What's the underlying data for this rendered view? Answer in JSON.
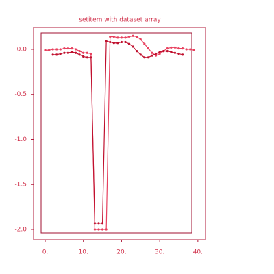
{
  "chart_data": {
    "type": "line",
    "title": "setitem with dataset array",
    "xlim": [
      -3.05,
      42
    ],
    "ylim": [
      -2.114,
      0.243
    ],
    "xticks": [
      {
        "value": 0,
        "label": "0."
      },
      {
        "value": 10,
        "label": "10."
      },
      {
        "value": 20,
        "label": "20."
      },
      {
        "value": 30,
        "label": "30."
      },
      {
        "value": 40,
        "label": "40."
      }
    ],
    "yticks": [
      {
        "value": 0,
        "label": "0.0"
      },
      -0.5,
      {
        "value": -1,
        "label": "-1.0"
      },
      -1.5,
      {
        "value": -2,
        "label": "-2.0"
      }
    ],
    "series": [
      {
        "color": "#e8405e",
        "x": [
          0,
          1,
          2,
          3,
          4,
          5,
          6,
          7,
          8,
          9,
          10,
          11,
          12,
          13,
          14,
          15,
          16,
          17,
          18,
          19,
          20,
          21,
          22,
          23,
          24,
          25,
          26,
          27,
          28,
          29,
          30,
          31,
          32,
          33,
          34,
          35,
          36,
          37,
          38,
          39
        ],
        "values": [
          -0.01,
          -0.01,
          0.0,
          0.0,
          0.0,
          0.01,
          0.01,
          0.01,
          0.0,
          -0.02,
          -0.04,
          -0.04,
          -0.05,
          -2.0,
          -2.0,
          -2.0,
          -2.0,
          0.14,
          0.14,
          0.13,
          0.13,
          0.13,
          0.14,
          0.15,
          0.14,
          0.11,
          0.06,
          0.01,
          -0.04,
          -0.07,
          -0.05,
          -0.02,
          0.01,
          0.02,
          0.02,
          0.01,
          0.01,
          0.0,
          0.0,
          -0.01
        ]
      },
      {
        "color": "#c0102e",
        "x": [
          2,
          3,
          4,
          5,
          6,
          7,
          8,
          9,
          10,
          11,
          12,
          13,
          14,
          15,
          16,
          17,
          18,
          19,
          20,
          21,
          22,
          23,
          24,
          25,
          26,
          27,
          28,
          29,
          30,
          31,
          32,
          33,
          34,
          35,
          36
        ],
        "values": [
          -0.06,
          -0.06,
          -0.05,
          -0.04,
          -0.04,
          -0.03,
          -0.04,
          -0.06,
          -0.08,
          -0.09,
          -0.09,
          -1.93,
          -1.93,
          -1.93,
          0.09,
          0.08,
          0.07,
          0.07,
          0.08,
          0.08,
          0.06,
          0.03,
          -0.02,
          -0.06,
          -0.09,
          -0.09,
          -0.07,
          -0.05,
          -0.03,
          -0.02,
          -0.02,
          -0.03,
          -0.04,
          -0.05,
          -0.06
        ]
      }
    ]
  }
}
